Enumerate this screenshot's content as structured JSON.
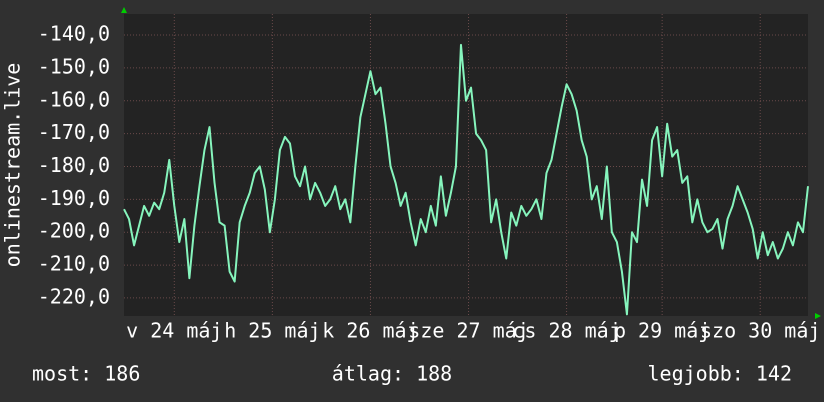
{
  "chart_data": {
    "type": "line",
    "ylabel": "onlinestream.live",
    "ylim": [
      -225.5,
      -133.6
    ],
    "yticks": [
      {
        "value": -140,
        "label": "-140,0"
      },
      {
        "value": -150,
        "label": "-150,0"
      },
      {
        "value": -160,
        "label": "-160,0"
      },
      {
        "value": -170,
        "label": "-170,0"
      },
      {
        "value": -180,
        "label": "-180,0"
      },
      {
        "value": -190,
        "label": "-190,0"
      },
      {
        "value": -200,
        "label": "-200,0"
      },
      {
        "value": -210,
        "label": "-210,0"
      },
      {
        "value": -220,
        "label": "-220,0"
      }
    ],
    "xlim": [
      0,
      136
    ],
    "xticks": [
      {
        "value": 10,
        "label": "v 24 máj"
      },
      {
        "value": 29.5,
        "label": "h 25 máj"
      },
      {
        "value": 49,
        "label": "k 26 máj"
      },
      {
        "value": 68.5,
        "label": "sze 27 máj"
      },
      {
        "value": 88,
        "label": "cs 28 máj"
      },
      {
        "value": 107,
        "label": "p 29 máj"
      },
      {
        "value": 126.5,
        "label": "szo 30 máj"
      }
    ],
    "grid": true,
    "color": "#86f5bd",
    "values": [
      -193,
      -196,
      -204,
      -198,
      -192,
      -195,
      -191,
      -193,
      -188,
      -178,
      -192,
      -203,
      -196,
      -214,
      -198,
      -186,
      -175,
      -168,
      -185,
      -197,
      -198,
      -212,
      -215,
      -197,
      -192,
      -188,
      -182,
      -180,
      -187,
      -200,
      -190,
      -175,
      -171,
      -173,
      -183,
      -186,
      -180,
      -190,
      -185,
      -188,
      -192,
      -190,
      -186,
      -193,
      -190,
      -197,
      -180,
      -165,
      -158,
      -151,
      -158,
      -156,
      -167,
      -180,
      -185,
      -192,
      -188,
      -197,
      -204,
      -196,
      -200,
      -192,
      -198,
      -183,
      -195,
      -188,
      -180,
      -143,
      -160,
      -156,
      -170,
      -172,
      -175,
      -197,
      -190,
      -200,
      -208,
      -194,
      -198,
      -192,
      -195,
      -193,
      -190,
      -196,
      -182,
      -178,
      -170,
      -162,
      -155,
      -158,
      -163,
      -172,
      -177,
      -190,
      -186,
      -196,
      -180,
      -200,
      -203,
      -212,
      -225,
      -200,
      -203,
      -184,
      -192,
      -172,
      -168,
      -183,
      -167,
      -177,
      -175,
      -185,
      -183,
      -197,
      -190,
      -197,
      -200,
      -199,
      -196,
      -205,
      -196,
      -192,
      -186,
      -190,
      -194,
      -199,
      -208,
      -200,
      -207,
      -203,
      -208,
      -205,
      -200,
      -204,
      -197,
      -200,
      -186
    ],
    "legend": [
      "most: 186",
      "átlag: 188",
      "legjobb: 142"
    ]
  }
}
